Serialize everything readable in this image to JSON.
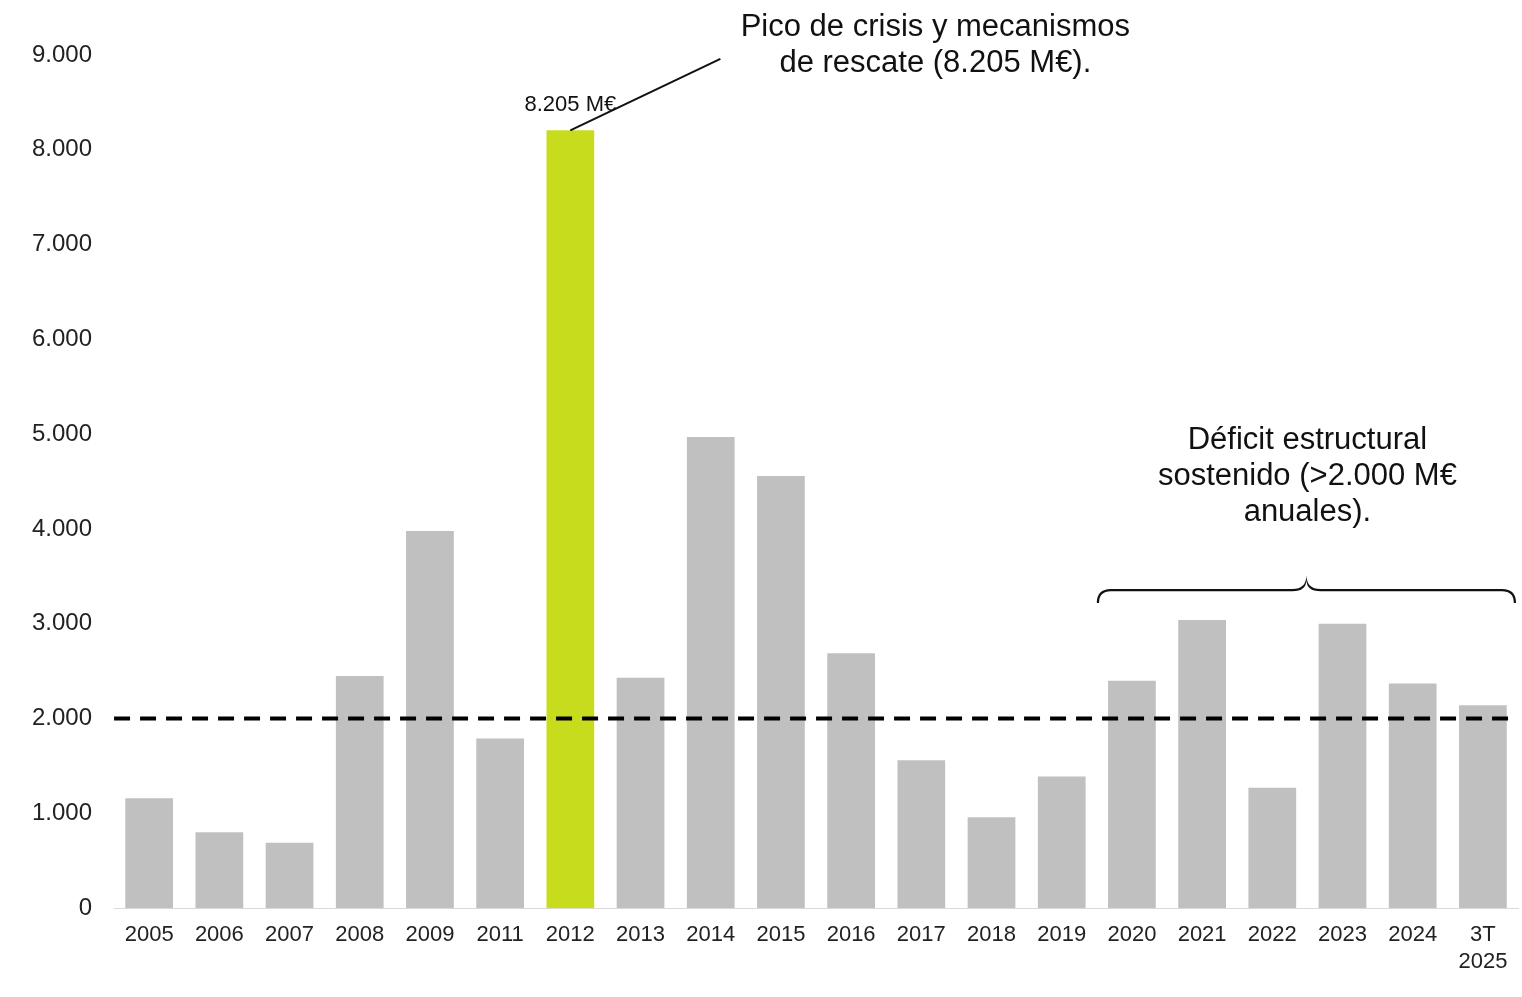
{
  "chart_data": {
    "type": "bar",
    "categories": [
      "2005",
      "2006",
      "2007",
      "2008",
      "2009",
      "2011",
      "2012",
      "2013",
      "2014",
      "2015",
      "2016",
      "2017",
      "2018",
      "2019",
      "2020",
      "2021",
      "2022",
      "2023",
      "2024",
      "3T 2025"
    ],
    "values": [
      1160,
      800,
      690,
      2450,
      3980,
      1790,
      8205,
      2430,
      4970,
      4560,
      2690,
      1560,
      960,
      1390,
      2400,
      3040,
      1270,
      3000,
      2370,
      2140
    ],
    "colors": [
      "#c0c0c0",
      "#c0c0c0",
      "#c0c0c0",
      "#c0c0c0",
      "#c0c0c0",
      "#c0c0c0",
      "#c8dc1e",
      "#c0c0c0",
      "#c0c0c0",
      "#c0c0c0",
      "#c0c0c0",
      "#c0c0c0",
      "#c0c0c0",
      "#c0c0c0",
      "#c0c0c0",
      "#c0c0c0",
      "#c0c0c0",
      "#c0c0c0",
      "#c0c0c0",
      "#c0c0c0"
    ],
    "value_labels": [
      null,
      null,
      null,
      null,
      null,
      null,
      "8.205 M€",
      null,
      null,
      null,
      null,
      null,
      null,
      null,
      null,
      null,
      null,
      null,
      null,
      null
    ],
    "ylim": [
      0,
      9000
    ],
    "yticks": [
      {
        "value": 0,
        "label": "0"
      },
      {
        "value": 1000,
        "label": "1.000"
      },
      {
        "value": 2000,
        "label": "2.000"
      },
      {
        "value": 3000,
        "label": "3.000"
      },
      {
        "value": 4000,
        "label": "4.000"
      },
      {
        "value": 5000,
        "label": "5.000"
      },
      {
        "value": 6000,
        "label": "6.000"
      },
      {
        "value": 7000,
        "label": "7.000"
      },
      {
        "value": 8000,
        "label": "8.000"
      },
      {
        "value": 9000,
        "label": "9.000"
      }
    ],
    "ref_lines": [
      {
        "axis": "y",
        "value": 2000,
        "color": "#000000",
        "line_style": "dashed"
      }
    ],
    "annotations": [
      {
        "text": "Pico de crisis y mecanismos de rescate (8.205 M€).",
        "x": "2012",
        "y": 8205
      },
      "Déficit estructural sostenido (>2.000 M€ anuales)."
    ],
    "grid": false,
    "legend": false
  }
}
